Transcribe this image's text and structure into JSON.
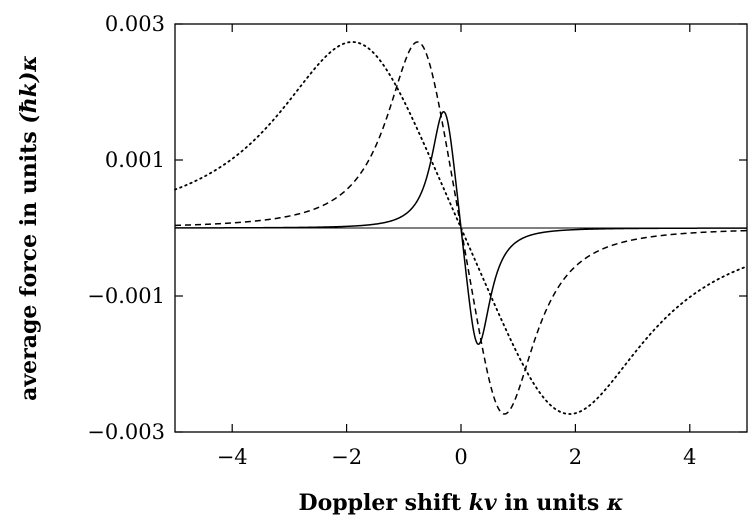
{
  "chart_data": {
    "type": "line",
    "xlabel_parts": [
      "Doppler shift ",
      "kv",
      " in units ",
      "κ"
    ],
    "ylabel_parts": [
      "average force in units ",
      "(ħk)κ"
    ],
    "xlim": [
      -5,
      5
    ],
    "ylim": [
      -0.003,
      0.003
    ],
    "x_ticks": [
      {
        "value": -4,
        "label": "−4"
      },
      {
        "value": -2,
        "label": "−2"
      },
      {
        "value": 0,
        "label": "0"
      },
      {
        "value": 2,
        "label": "2"
      },
      {
        "value": 4,
        "label": "4"
      }
    ],
    "y_ticks": [
      {
        "value": 0.003,
        "label": "0.003"
      },
      {
        "value": 0.001,
        "label": "0.001"
      },
      {
        "value": -0.001,
        "label": "−0.001"
      },
      {
        "value": -0.003,
        "label": "−0.003"
      }
    ],
    "zero_line": true,
    "series": [
      {
        "style": "solid",
        "color": "#000000",
        "peak_x": 0.4,
        "peak_value": 0.0015
      },
      {
        "style": "dashed",
        "color": "#000000",
        "peak_x": 1.0,
        "peak_value": 0.0024
      },
      {
        "style": "dotted",
        "color": "#000000",
        "peak_x": 2.5,
        "peak_value": 0.0024
      }
    ]
  }
}
